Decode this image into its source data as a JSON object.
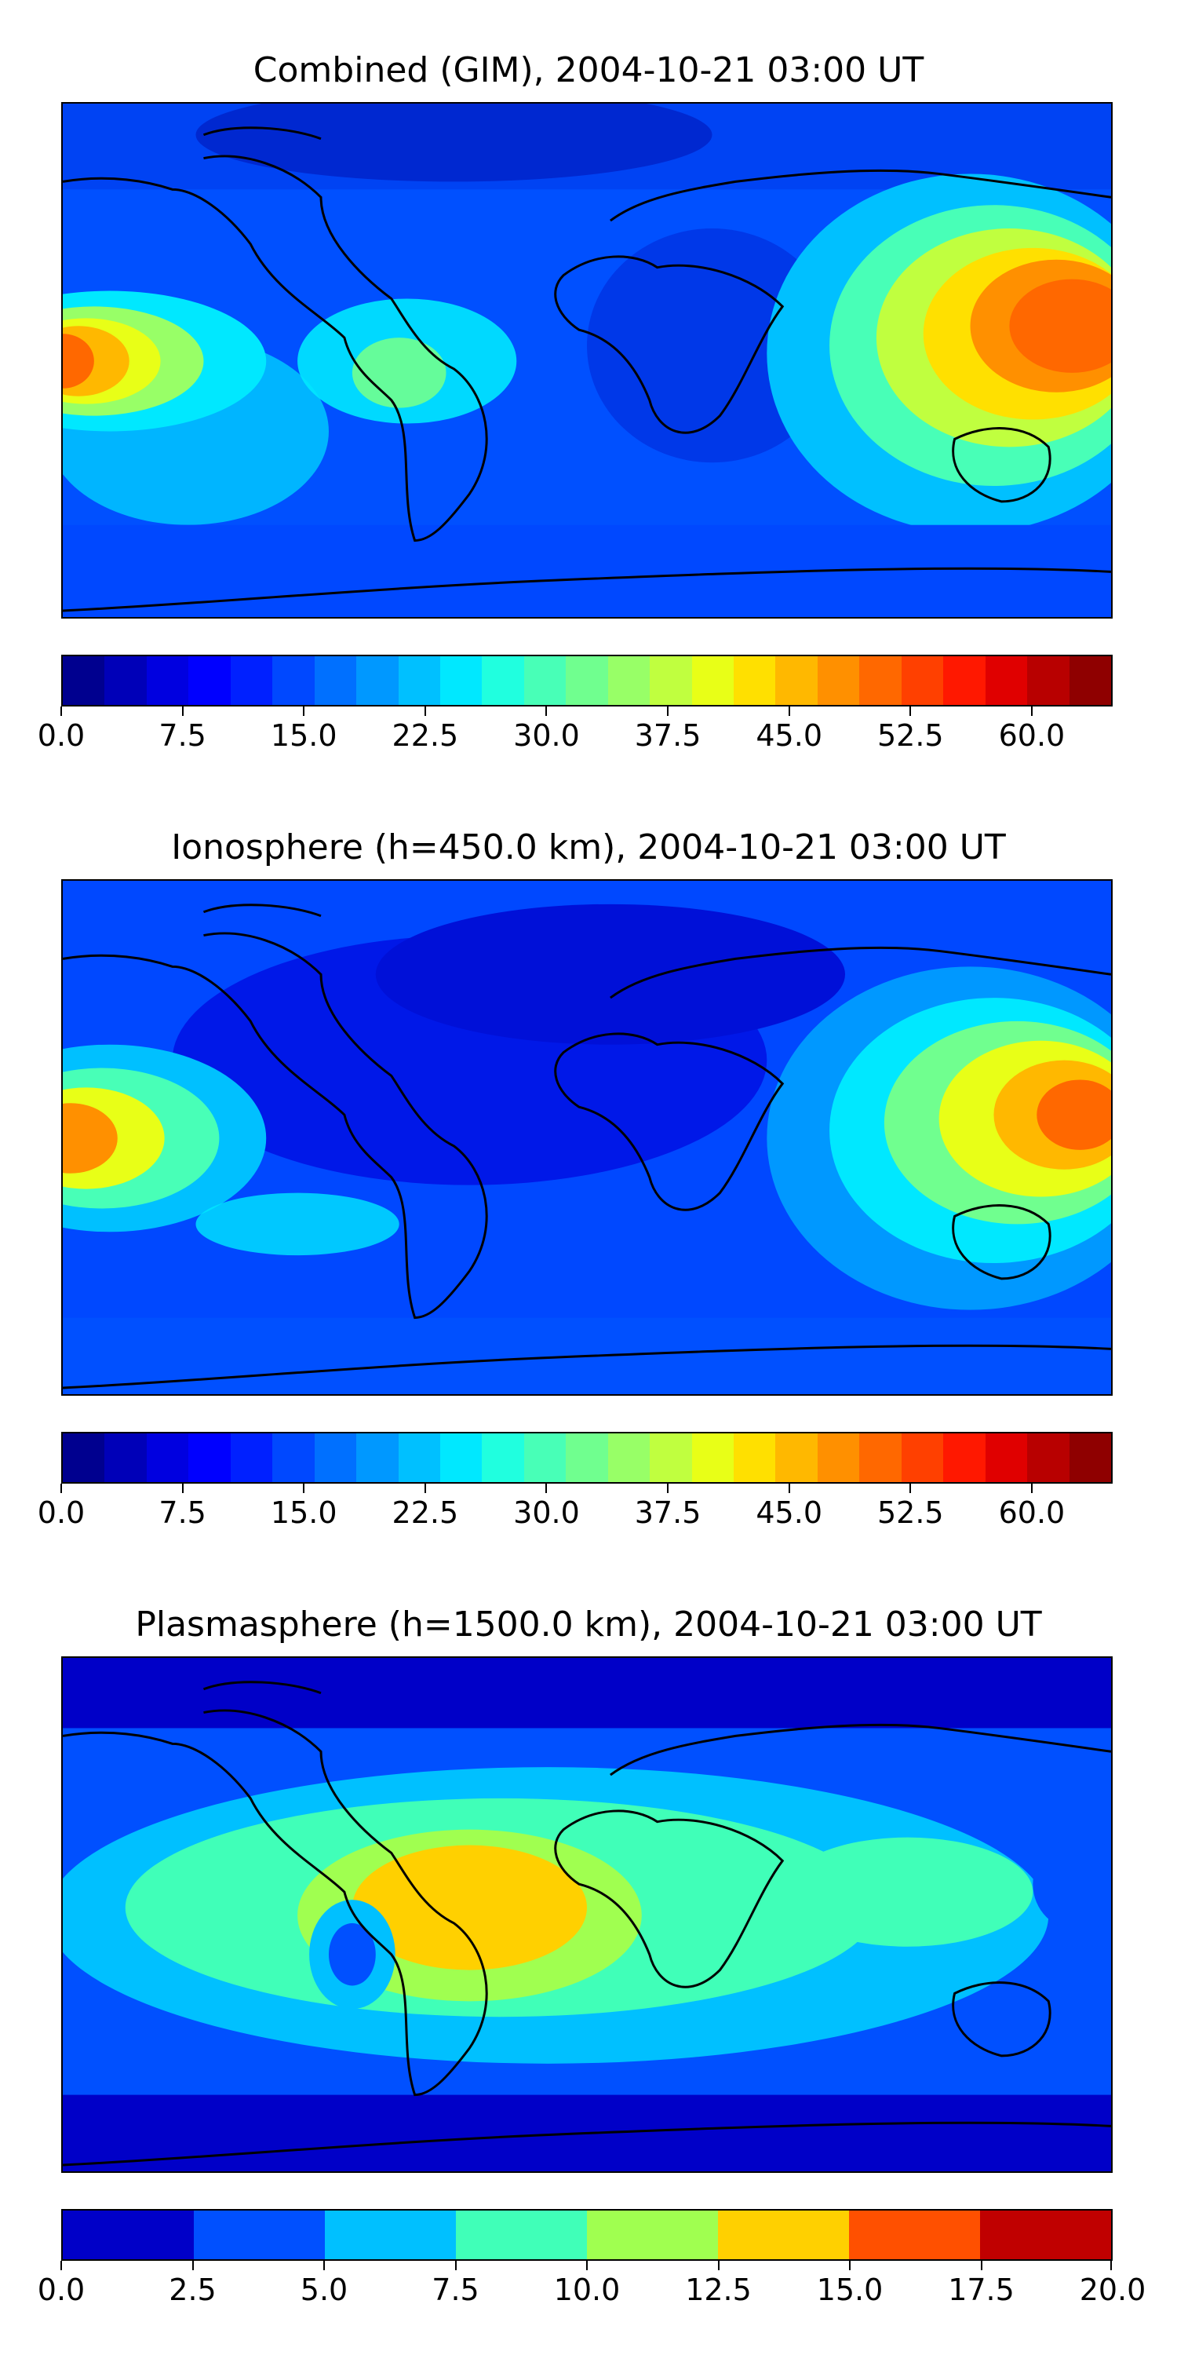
{
  "panels": [
    {
      "title": "Combined (GIM), 2004-10-21 03:00 UT",
      "colorbar": {
        "range": [
          0,
          65
        ],
        "colors": [
          "#00008f",
          "#0000b8",
          "#0000e0",
          "#0000ff",
          "#0020ff",
          "#0048ff",
          "#0070ff",
          "#0098ff",
          "#00c0ff",
          "#00e8ff",
          "#20ffdf",
          "#48ffb7",
          "#70ff8f",
          "#98ff67",
          "#c0ff3f",
          "#e8ff17",
          "#ffe000",
          "#ffb800",
          "#ff9000",
          "#ff6800",
          "#ff4000",
          "#ff1800",
          "#e00000",
          "#b80000",
          "#8f0000"
        ],
        "ticks": [
          "0.0",
          "7.5",
          "15.0",
          "22.5",
          "30.0",
          "37.5",
          "45.0",
          "52.5",
          "60.0"
        ],
        "tick_values": [
          0,
          7.5,
          15,
          22.5,
          30,
          37.5,
          45,
          52.5,
          60
        ]
      }
    },
    {
      "title": "Ionosphere  (h=450.0 km), 2004-10-21 03:00 UT",
      "colorbar": {
        "range": [
          0,
          65
        ],
        "colors": [
          "#00008f",
          "#0000b8",
          "#0000e0",
          "#0000ff",
          "#0020ff",
          "#0048ff",
          "#0070ff",
          "#0098ff",
          "#00c0ff",
          "#00e8ff",
          "#20ffdf",
          "#48ffb7",
          "#70ff8f",
          "#98ff67",
          "#c0ff3f",
          "#e8ff17",
          "#ffe000",
          "#ffb800",
          "#ff9000",
          "#ff6800",
          "#ff4000",
          "#ff1800",
          "#e00000",
          "#b80000",
          "#8f0000"
        ],
        "ticks": [
          "0.0",
          "7.5",
          "15.0",
          "22.5",
          "30.0",
          "37.5",
          "45.0",
          "52.5",
          "60.0"
        ],
        "tick_values": [
          0,
          7.5,
          15,
          22.5,
          30,
          37.5,
          45,
          52.5,
          60
        ]
      }
    },
    {
      "title": "Plasmasphere (h=1500.0 km), 2004-10-21 03:00 UT",
      "colorbar": {
        "range": [
          0,
          20
        ],
        "colors": [
          "#0000c8",
          "#0050ff",
          "#00c0ff",
          "#40ffb8",
          "#a0ff50",
          "#ffd000",
          "#ff5000",
          "#c00000"
        ],
        "ticks": [
          "0.0",
          "2.5",
          "5.0",
          "7.5",
          "10.0",
          "12.5",
          "15.0",
          "17.5",
          "20.0"
        ],
        "tick_values": [
          0,
          2.5,
          5,
          7.5,
          10,
          12.5,
          15,
          17.5,
          20
        ]
      }
    }
  ]
}
